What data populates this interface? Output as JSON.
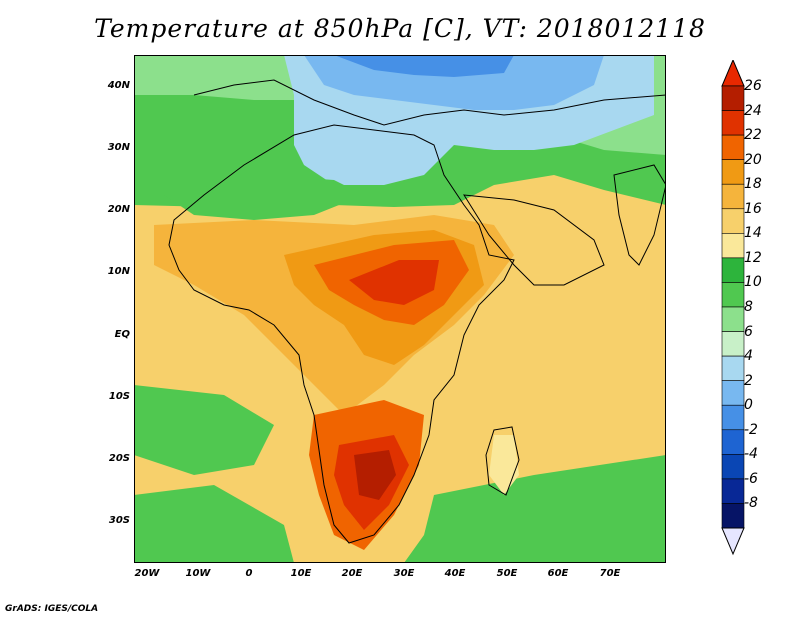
{
  "title": "Temperature at 850hPa [C], VT: 2018012118",
  "footer": "GrADS: IGES/COLA",
  "lat_labels": [
    "40N",
    "30N",
    "20N",
    "10N",
    "EQ",
    "10S",
    "20S",
    "30S"
  ],
  "lon_labels": [
    "20W",
    "10W",
    "0",
    "10E",
    "20E",
    "30E",
    "40E",
    "50E",
    "60E",
    "70E"
  ],
  "colorbar": {
    "labels": [
      "26",
      "24",
      "22",
      "20",
      "18",
      "16",
      "14",
      "12",
      "10",
      "8",
      "6",
      "4",
      "2",
      "0",
      "-2",
      "-4",
      "-6",
      "-8"
    ],
    "colors": [
      "#b41e00",
      "#e03200",
      "#f06400",
      "#f09a14",
      "#f5b43c",
      "#f7d06b",
      "#fae89a",
      "#2db43c",
      "#50c850",
      "#8ce08c",
      "#c8f0c8",
      "#a8d8f0",
      "#78b8f0",
      "#4690e6",
      "#1e64d2",
      "#0a46b4",
      "#082896",
      "#061466"
    ],
    "over_color": "#e82800",
    "under_color": "#e6e6ff"
  },
  "map": {
    "lat_range": [
      -36,
      45
    ],
    "lon_range": [
      -23,
      80
    ],
    "field": "temperature_850hPa",
    "units": "C"
  }
}
